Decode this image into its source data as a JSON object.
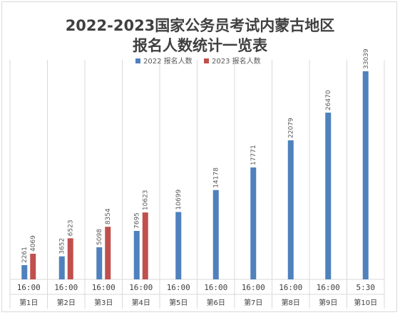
{
  "chart_data": {
    "type": "bar",
    "title_line1": "2022-2023国家公务员考试内蒙古地区",
    "title_line2": "报名人数统计一览表",
    "categories": [
      {
        "time": "16:00",
        "day": "第1日"
      },
      {
        "time": "16:00",
        "day": "第2日"
      },
      {
        "time": "16:00",
        "day": "第3日"
      },
      {
        "time": "16:00",
        "day": "第4日"
      },
      {
        "time": "16:00",
        "day": "第5日"
      },
      {
        "time": "16:00",
        "day": "第6日"
      },
      {
        "time": "16:00",
        "day": "第7日"
      },
      {
        "time": "16:00",
        "day": "第8日"
      },
      {
        "time": "16:00",
        "day": "第9日"
      },
      {
        "time": "5:30",
        "day": "第10日"
      }
    ],
    "series": [
      {
        "name": "2022 报名人数",
        "color": "#4f81bd",
        "values": [
          2261,
          3652,
          5098,
          7695,
          10699,
          14178,
          17771,
          22079,
          26470,
          33039
        ]
      },
      {
        "name": "2023 报名人数",
        "color": "#c0504d",
        "values": [
          4069,
          6523,
          8354,
          10623,
          null,
          null,
          null,
          null,
          null,
          null
        ]
      }
    ],
    "ylim": [
      0,
      33039
    ],
    "grid": "vertical category separators",
    "legend_position": "top"
  }
}
